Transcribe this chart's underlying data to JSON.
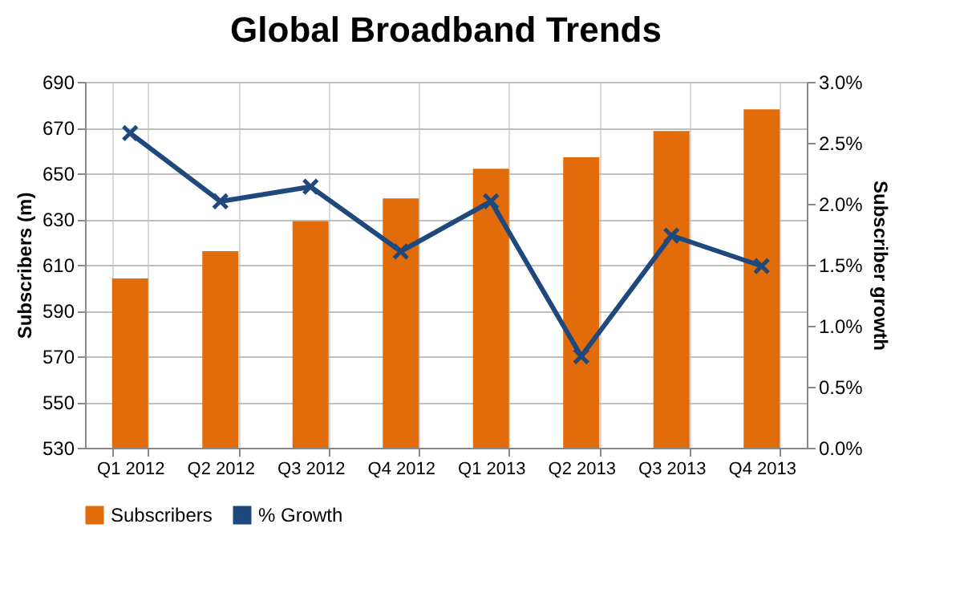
{
  "chart_data": {
    "type": "bar",
    "title": "Global Broadband Trends",
    "ylabel": "Subscribers (m)",
    "y2label": "Subscriber growth",
    "categories": [
      "Q1 2012",
      "Q2 2012",
      "Q3 2012",
      "Q4 2012",
      "Q1 2013",
      "Q2 2013",
      "Q3 2013",
      "Q4 2013"
    ],
    "series": [
      {
        "name": "Subscribers",
        "color": "#e36c0a",
        "values": [
          604,
          616,
          629,
          639,
          652,
          657,
          668.5,
          678
        ]
      },
      {
        "name": "% Growth",
        "type": "line",
        "axis": "y2",
        "color": "#1f497d",
        "marker": "cross",
        "values": [
          2.58,
          2.02,
          2.14,
          1.61,
          2.02,
          0.75,
          1.74,
          1.49
        ]
      }
    ],
    "ylim": [
      530,
      690
    ],
    "yticks": [
      530,
      550,
      570,
      590,
      610,
      630,
      650,
      670,
      690
    ],
    "y2lim": [
      0,
      3
    ],
    "y2ticks": [
      {
        "value": 0,
        "label": "0.0%"
      },
      {
        "value": 0.5,
        "label": "0.5%"
      },
      {
        "value": 1,
        "label": "1.0%"
      },
      {
        "value": 1.5,
        "label": "1.5%"
      },
      {
        "value": 2,
        "label": "2.0%"
      },
      {
        "value": 2.5,
        "label": "2.5%"
      },
      {
        "value": 3,
        "label": "3.0%"
      }
    ],
    "grid": true,
    "legend": "bottom"
  }
}
